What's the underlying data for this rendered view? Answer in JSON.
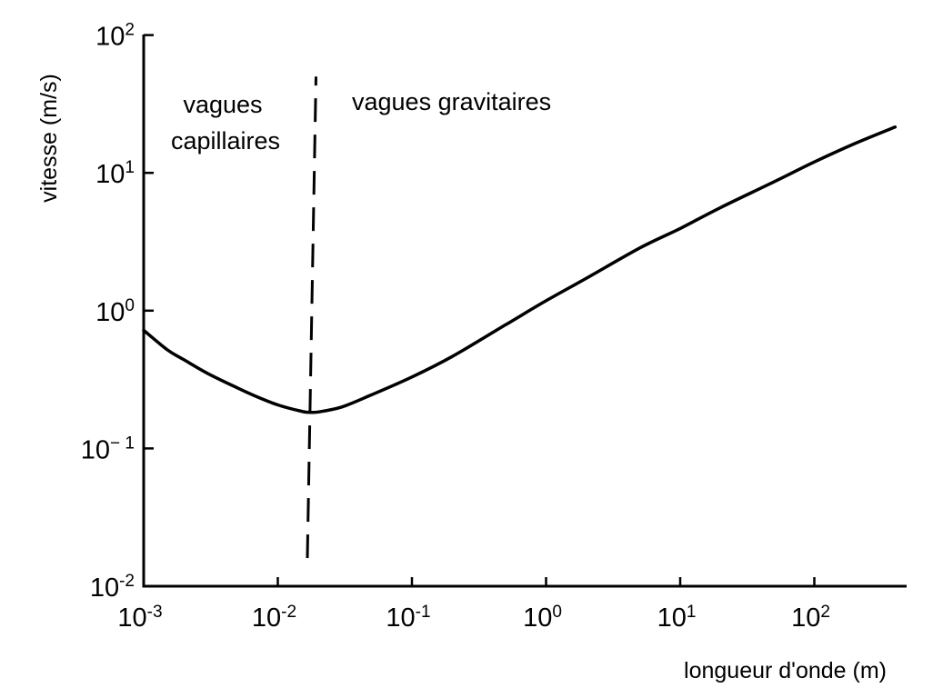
{
  "chart_data": {
    "type": "line",
    "xscale": "log",
    "yscale": "log",
    "xlabel": "longueur d'onde (m)",
    "ylabel": "vitesse (m/s)",
    "xlim": [
      0.001,
      400
    ],
    "ylim": [
      0.01,
      100
    ],
    "x_ticks": [
      {
        "value": 0.001,
        "base": "10",
        "exp": "-3"
      },
      {
        "value": 0.01,
        "base": "10",
        "exp": "-2"
      },
      {
        "value": 0.1,
        "base": "10",
        "exp": "-1"
      },
      {
        "value": 1,
        "base": "10",
        "exp": "0"
      },
      {
        "value": 10,
        "base": "10",
        "exp": "1"
      },
      {
        "value": 100,
        "base": "10",
        "exp": "2"
      }
    ],
    "y_ticks": [
      {
        "value": 0.01,
        "base": "10",
        "exp": "-2"
      },
      {
        "value": 0.1,
        "base": "10",
        "exp": "− 1"
      },
      {
        "value": 1,
        "base": "10",
        "exp": "0"
      },
      {
        "value": 10,
        "base": "10",
        "exp": "1"
      },
      {
        "value": 100,
        "base": "10",
        "exp": "2"
      }
    ],
    "curve": {
      "x": [
        0.001,
        0.0015,
        0.002,
        0.003,
        0.005,
        0.007,
        0.01,
        0.015,
        0.017,
        0.02,
        0.03,
        0.05,
        0.1,
        0.2,
        0.5,
        1,
        2,
        5,
        10,
        20,
        50,
        100,
        200,
        400
      ],
      "y": [
        0.72,
        0.52,
        0.44,
        0.35,
        0.275,
        0.237,
        0.207,
        0.186,
        0.183,
        0.184,
        0.2,
        0.245,
        0.33,
        0.465,
        0.79,
        1.18,
        1.72,
        2.85,
        3.95,
        5.6,
        8.6,
        12.0,
        16.3,
        21.5
      ]
    },
    "divider": {
      "x": 0.017,
      "ymin": 0.016,
      "ymax": 50,
      "style": "dashed"
    },
    "annotations": {
      "capillary": [
        "vagues",
        "capillaires"
      ],
      "gravity": "vagues gravitaires"
    },
    "grid": false,
    "legend": "none"
  }
}
